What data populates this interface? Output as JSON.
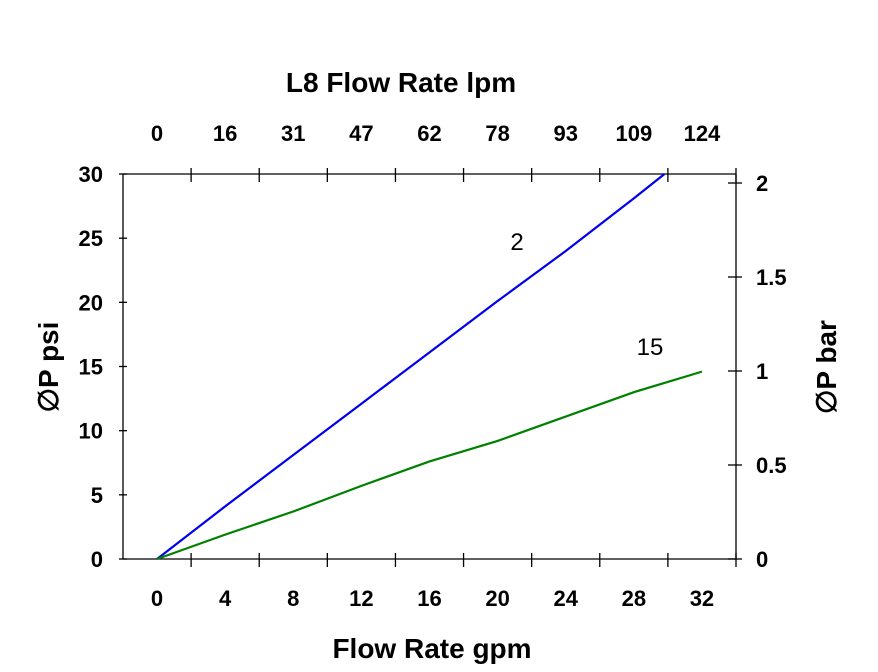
{
  "chart_data": {
    "type": "line",
    "title": "L8  Flow Rate lpm",
    "xlabel": "Flow Rate gpm",
    "ylabel": "∅P psi",
    "ylabel_right": "∅P bar",
    "xlim": [
      -2,
      34
    ],
    "ylim": [
      0,
      30
    ],
    "ylim_right": [
      0,
      2
    ],
    "x_ticks": [
      "0",
      "4",
      "8",
      "12",
      "16",
      "20",
      "24",
      "28",
      "32"
    ],
    "x_tick_values": [
      0,
      4,
      8,
      12,
      16,
      20,
      24,
      28,
      32
    ],
    "top_ticks": [
      "0",
      "16",
      "31",
      "47",
      "62",
      "78",
      "93",
      "109",
      "124"
    ],
    "y_ticks": [
      "0",
      "5",
      "10",
      "15",
      "20",
      "25",
      "30"
    ],
    "y_tick_values": [
      0,
      5,
      10,
      15,
      20,
      25,
      30
    ],
    "y_right_ticks": [
      "0",
      "0.5",
      "1",
      "1.5",
      "2"
    ],
    "y_right_tick_values": [
      0,
      0.5,
      1,
      1.5,
      2
    ],
    "grid": false,
    "series": [
      {
        "name": "2",
        "color": "#0000ee",
        "x": [
          0,
          4,
          8,
          12,
          16,
          20,
          24,
          28,
          29.8
        ],
        "y": [
          0,
          4.1,
          8.1,
          12.1,
          16.1,
          20.1,
          24.0,
          28.1,
          30
        ]
      },
      {
        "name": "15",
        "color": "#008000",
        "x": [
          0,
          4,
          8,
          12,
          16,
          20,
          24,
          28,
          32
        ],
        "y": [
          0,
          1.9,
          3.7,
          5.7,
          7.6,
          9.2,
          11.1,
          13.0,
          14.6
        ]
      }
    ]
  }
}
